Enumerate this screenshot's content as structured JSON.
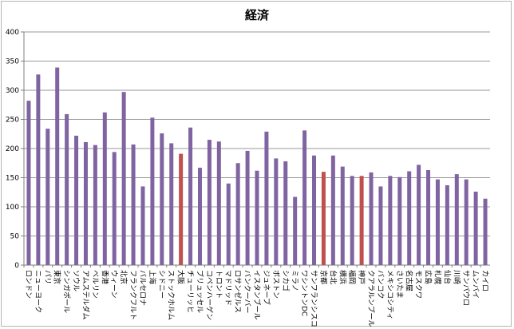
{
  "chart_data": {
    "type": "bar",
    "title": "経済",
    "xlabel": "",
    "ylabel": "",
    "ylim": [
      0,
      400
    ],
    "yticks": [
      0,
      50,
      100,
      150,
      200,
      250,
      300,
      350,
      400
    ],
    "grid": true,
    "legend": "none",
    "colors": {
      "default": "#8064a2",
      "highlight": "#c0504d",
      "grid": "#9a9a9a",
      "axis": "#7f7f7f"
    },
    "categories": [
      "ロンドン",
      "ニューヨーク",
      "パリ",
      "東京",
      "シンガポール",
      "ソウル",
      "アムステルダム",
      "ベルリン",
      "香港",
      "ウィーン",
      "北京",
      "フランクフルト",
      "バルセロナ",
      "上海",
      "シドニー",
      "ストックホルム",
      "大阪",
      "チューリッヒ",
      "ブリュッセル",
      "コペンハーゲン",
      "トロント",
      "マドリッド",
      "ロサンゼルス",
      "バンクーバー",
      "イスタンブール",
      "ジュネーブ",
      "ボストン",
      "シカゴ",
      "ミラノ",
      "ワシントンDC",
      "サンフランシスコ",
      "京都",
      "台北",
      "横浜",
      "福岡",
      "神戸",
      "クアラルンプール",
      "バンコク",
      "メキシコシティ",
      "さいたま",
      "名古屋",
      "モスクワ",
      "広島",
      "札幌",
      "仙台",
      "川崎",
      "サンパウロ",
      "ムンバイ",
      "カイロ"
    ],
    "values": [
      282,
      327,
      234,
      339,
      259,
      222,
      211,
      206,
      262,
      194,
      297,
      207,
      135,
      253,
      226,
      209,
      191,
      236,
      167,
      215,
      212,
      140,
      175,
      196,
      162,
      229,
      183,
      178,
      117,
      231,
      188,
      160,
      188,
      169,
      153,
      153,
      159,
      135,
      153,
      151,
      161,
      172,
      163,
      147,
      137,
      156,
      147,
      126,
      114
    ],
    "highlighted": [
      "大阪",
      "京都",
      "神戸"
    ]
  }
}
